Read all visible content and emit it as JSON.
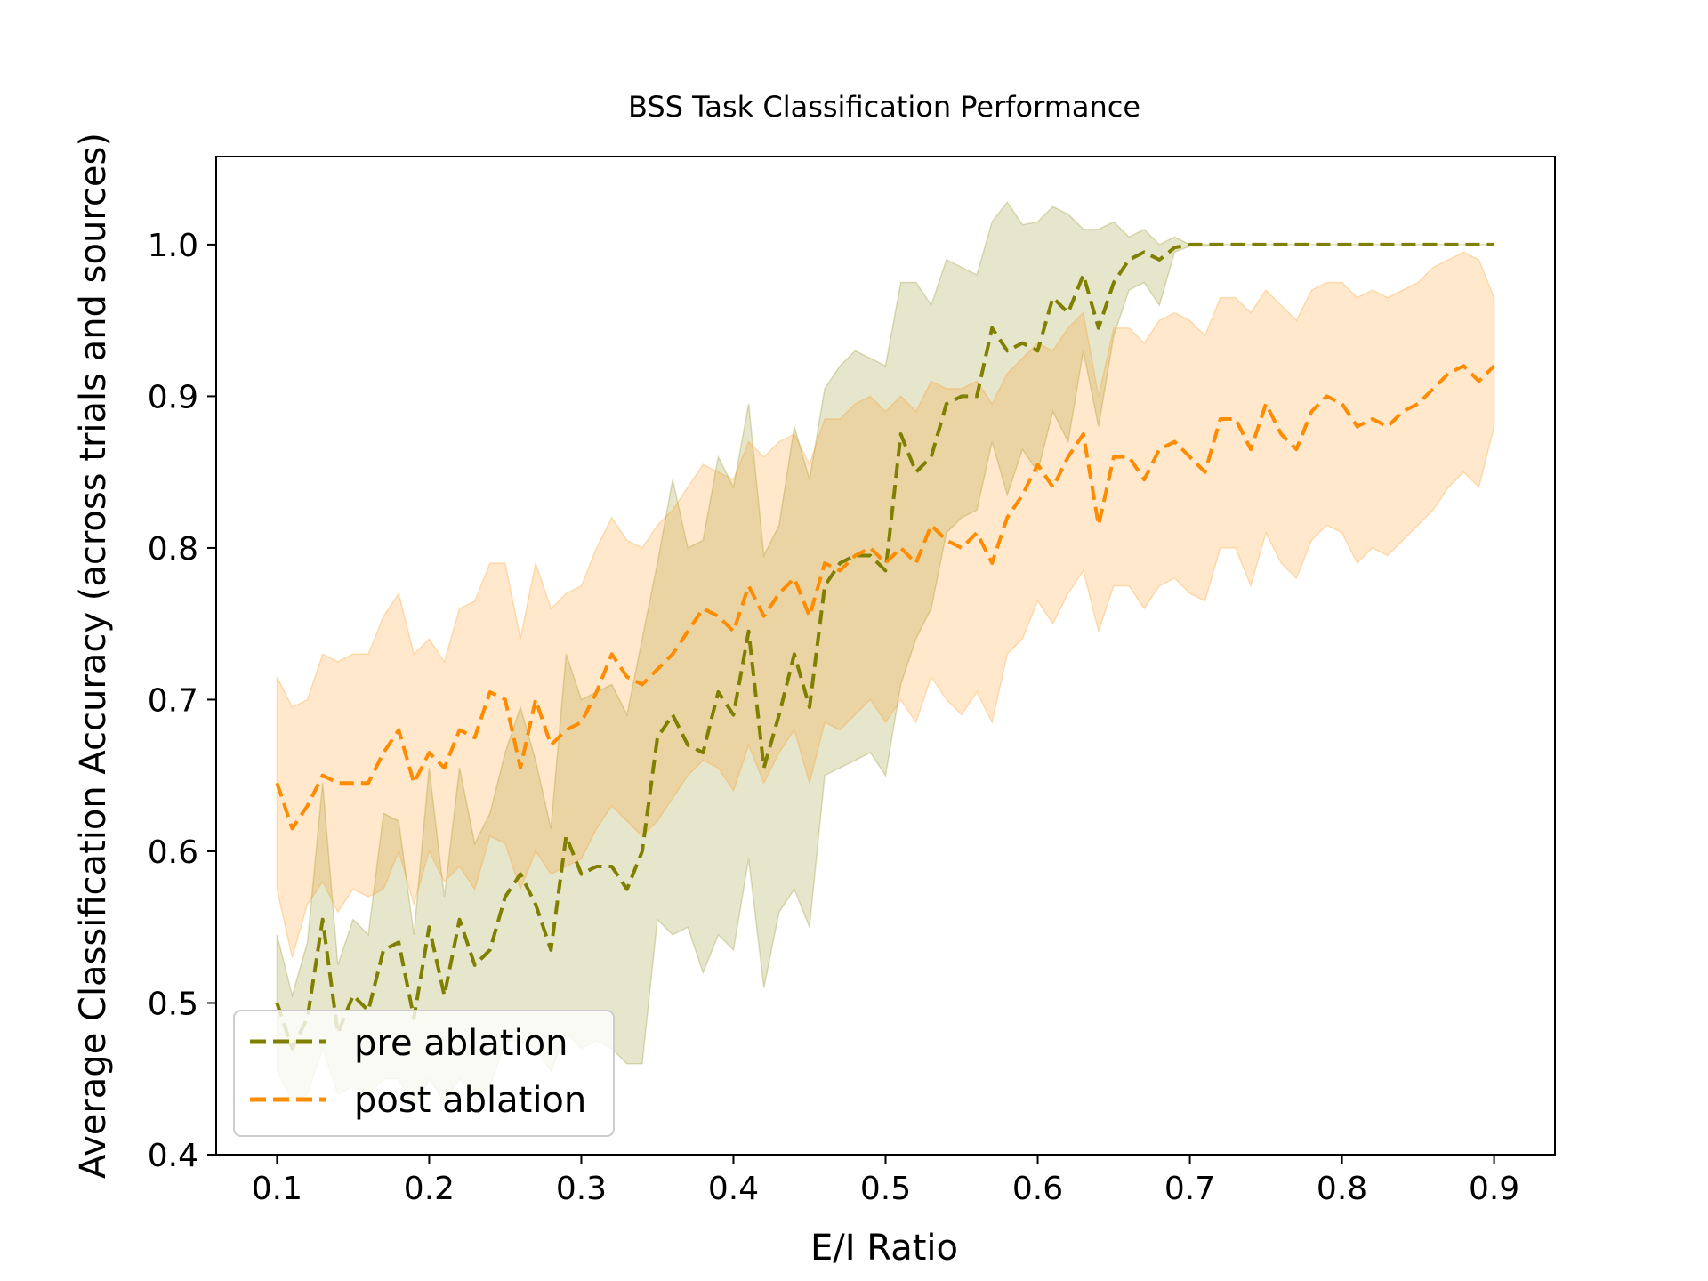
{
  "chart_data": {
    "type": "line",
    "title": "BSS Task Classification Performance",
    "xlabel": "E/I Ratio",
    "ylabel": "Average Classification Accuracy (across trials and sources)",
    "xlim": [
      0.06,
      0.94
    ],
    "ylim": [
      0.4,
      1.058
    ],
    "xticks": [
      0.1,
      0.2,
      0.3,
      0.4,
      0.5,
      0.6,
      0.7,
      0.8,
      0.9
    ],
    "xtick_labels": [
      "0.1",
      "0.2",
      "0.3",
      "0.4",
      "0.5",
      "0.6",
      "0.7",
      "0.8",
      "0.9"
    ],
    "yticks": [
      0.4,
      0.5,
      0.6,
      0.7,
      0.8,
      0.9,
      1.0
    ],
    "ytick_labels": [
      "0.4",
      "0.5",
      "0.6",
      "0.7",
      "0.8",
      "0.9",
      "1.0"
    ],
    "grid": false,
    "legend_position": "lower-left",
    "x": [
      0.1,
      0.11,
      0.12,
      0.13,
      0.14,
      0.15,
      0.16,
      0.17,
      0.18,
      0.19,
      0.2,
      0.21,
      0.22,
      0.23,
      0.24,
      0.25,
      0.26,
      0.27,
      0.28,
      0.29,
      0.3,
      0.31,
      0.32,
      0.33,
      0.34,
      0.35,
      0.36,
      0.37,
      0.38,
      0.39,
      0.4,
      0.41,
      0.42,
      0.43,
      0.44,
      0.45,
      0.46,
      0.47,
      0.48,
      0.49,
      0.5,
      0.51,
      0.52,
      0.53,
      0.54,
      0.55,
      0.56,
      0.57,
      0.58,
      0.59,
      0.6,
      0.61,
      0.62,
      0.63,
      0.64,
      0.65,
      0.66,
      0.67,
      0.68,
      0.69,
      0.7,
      0.71,
      0.72,
      0.73,
      0.74,
      0.75,
      0.76,
      0.77,
      0.78,
      0.79,
      0.8,
      0.81,
      0.82,
      0.83,
      0.84,
      0.85,
      0.86,
      0.87,
      0.88,
      0.89,
      0.9
    ],
    "series": [
      {
        "name": "pre ablation",
        "color": "#808000",
        "linestyle": "dashed",
        "values": [
          0.5,
          0.47,
          0.49,
          0.555,
          0.48,
          0.505,
          0.495,
          0.535,
          0.54,
          0.49,
          0.55,
          0.505,
          0.555,
          0.525,
          0.535,
          0.57,
          0.585,
          0.565,
          0.535,
          0.61,
          0.585,
          0.59,
          0.59,
          0.575,
          0.6,
          0.675,
          0.69,
          0.67,
          0.665,
          0.705,
          0.69,
          0.745,
          0.655,
          0.69,
          0.73,
          0.695,
          0.775,
          0.79,
          0.795,
          0.795,
          0.785,
          0.875,
          0.85,
          0.86,
          0.895,
          0.9,
          0.9,
          0.945,
          0.93,
          0.935,
          0.93,
          0.965,
          0.955,
          0.98,
          0.945,
          0.975,
          0.99,
          0.995,
          0.99,
          0.998,
          1.0,
          1.0,
          1.0,
          1.0,
          1.0,
          1.0,
          1.0,
          1.0,
          1.0,
          1.0,
          1.0,
          1.0,
          1.0,
          1.0,
          1.0,
          1.0,
          1.0,
          1.0,
          1.0,
          1.0,
          1.0
        ],
        "lower": [
          0.455,
          0.435,
          0.44,
          0.47,
          0.44,
          0.445,
          0.44,
          0.45,
          0.45,
          0.43,
          0.45,
          0.435,
          0.45,
          0.44,
          0.445,
          0.475,
          0.475,
          0.47,
          0.455,
          0.48,
          0.47,
          0.475,
          0.47,
          0.46,
          0.46,
          0.555,
          0.545,
          0.55,
          0.52,
          0.545,
          0.535,
          0.595,
          0.51,
          0.56,
          0.575,
          0.55,
          0.65,
          0.655,
          0.66,
          0.665,
          0.65,
          0.71,
          0.74,
          0.76,
          0.81,
          0.82,
          0.825,
          0.87,
          0.835,
          0.865,
          0.85,
          0.89,
          0.87,
          0.93,
          0.88,
          0.94,
          0.97,
          0.975,
          0.96,
          0.995,
          0.999,
          0.999,
          1.0,
          1.0,
          1.0,
          1.0,
          1.0,
          1.0,
          1.0,
          1.0,
          1.0,
          1.0,
          1.0,
          1.0,
          1.0,
          1.0,
          1.0,
          1.0,
          1.0,
          1.0,
          1.0
        ],
        "upper": [
          0.545,
          0.505,
          0.54,
          0.645,
          0.525,
          0.555,
          0.545,
          0.625,
          0.62,
          0.545,
          0.655,
          0.57,
          0.655,
          0.605,
          0.625,
          0.665,
          0.695,
          0.66,
          0.615,
          0.73,
          0.7,
          0.705,
          0.71,
          0.69,
          0.74,
          0.79,
          0.845,
          0.8,
          0.805,
          0.86,
          0.84,
          0.895,
          0.795,
          0.815,
          0.88,
          0.845,
          0.905,
          0.92,
          0.93,
          0.925,
          0.92,
          0.975,
          0.975,
          0.96,
          0.99,
          0.985,
          0.98,
          1.015,
          1.028,
          1.013,
          1.015,
          1.025,
          1.02,
          1.01,
          1.01,
          1.015,
          1.005,
          1.01,
          1.0,
          1.005,
          1.0,
          1.0,
          1.0,
          1.0,
          1.0,
          1.0,
          1.0,
          1.0,
          1.0,
          1.0,
          1.0,
          1.0,
          1.0,
          1.0,
          1.0,
          1.0,
          1.0,
          1.0,
          1.0,
          1.0,
          1.0
        ]
      },
      {
        "name": "post ablation",
        "color": "#ff8c00",
        "linestyle": "dashed",
        "values": [
          0.645,
          0.615,
          0.63,
          0.65,
          0.645,
          0.645,
          0.645,
          0.665,
          0.68,
          0.645,
          0.665,
          0.655,
          0.68,
          0.675,
          0.705,
          0.7,
          0.655,
          0.7,
          0.67,
          0.68,
          0.685,
          0.705,
          0.73,
          0.715,
          0.71,
          0.72,
          0.73,
          0.745,
          0.76,
          0.755,
          0.745,
          0.775,
          0.755,
          0.77,
          0.78,
          0.755,
          0.79,
          0.785,
          0.795,
          0.8,
          0.79,
          0.8,
          0.79,
          0.815,
          0.805,
          0.8,
          0.81,
          0.79,
          0.82,
          0.835,
          0.855,
          0.84,
          0.86,
          0.875,
          0.815,
          0.86,
          0.86,
          0.845,
          0.865,
          0.87,
          0.86,
          0.85,
          0.885,
          0.885,
          0.865,
          0.895,
          0.875,
          0.865,
          0.89,
          0.9,
          0.895,
          0.88,
          0.885,
          0.88,
          0.89,
          0.895,
          0.905,
          0.915,
          0.92,
          0.91,
          0.92
        ],
        "lower": [
          0.575,
          0.53,
          0.565,
          0.58,
          0.56,
          0.575,
          0.57,
          0.575,
          0.6,
          0.565,
          0.6,
          0.58,
          0.59,
          0.575,
          0.61,
          0.605,
          0.575,
          0.6,
          0.585,
          0.59,
          0.595,
          0.615,
          0.63,
          0.62,
          0.61,
          0.62,
          0.635,
          0.65,
          0.66,
          0.655,
          0.64,
          0.67,
          0.645,
          0.665,
          0.68,
          0.645,
          0.685,
          0.68,
          0.69,
          0.7,
          0.685,
          0.7,
          0.685,
          0.715,
          0.7,
          0.69,
          0.705,
          0.685,
          0.73,
          0.74,
          0.765,
          0.75,
          0.77,
          0.785,
          0.745,
          0.775,
          0.775,
          0.76,
          0.775,
          0.78,
          0.77,
          0.765,
          0.8,
          0.8,
          0.775,
          0.81,
          0.79,
          0.78,
          0.805,
          0.815,
          0.81,
          0.79,
          0.8,
          0.795,
          0.805,
          0.815,
          0.825,
          0.84,
          0.85,
          0.84,
          0.88
        ],
        "upper": [
          0.715,
          0.695,
          0.7,
          0.73,
          0.725,
          0.73,
          0.73,
          0.755,
          0.77,
          0.73,
          0.74,
          0.725,
          0.76,
          0.765,
          0.79,
          0.79,
          0.74,
          0.79,
          0.76,
          0.77,
          0.775,
          0.8,
          0.82,
          0.805,
          0.8,
          0.815,
          0.825,
          0.84,
          0.855,
          0.85,
          0.845,
          0.87,
          0.86,
          0.87,
          0.875,
          0.855,
          0.885,
          0.885,
          0.895,
          0.9,
          0.89,
          0.9,
          0.89,
          0.91,
          0.905,
          0.905,
          0.91,
          0.895,
          0.915,
          0.925,
          0.935,
          0.93,
          0.945,
          0.955,
          0.9,
          0.945,
          0.945,
          0.935,
          0.95,
          0.955,
          0.95,
          0.94,
          0.965,
          0.965,
          0.955,
          0.97,
          0.96,
          0.95,
          0.97,
          0.975,
          0.975,
          0.965,
          0.97,
          0.965,
          0.97,
          0.975,
          0.985,
          0.99,
          0.995,
          0.99,
          0.965
        ]
      }
    ]
  }
}
